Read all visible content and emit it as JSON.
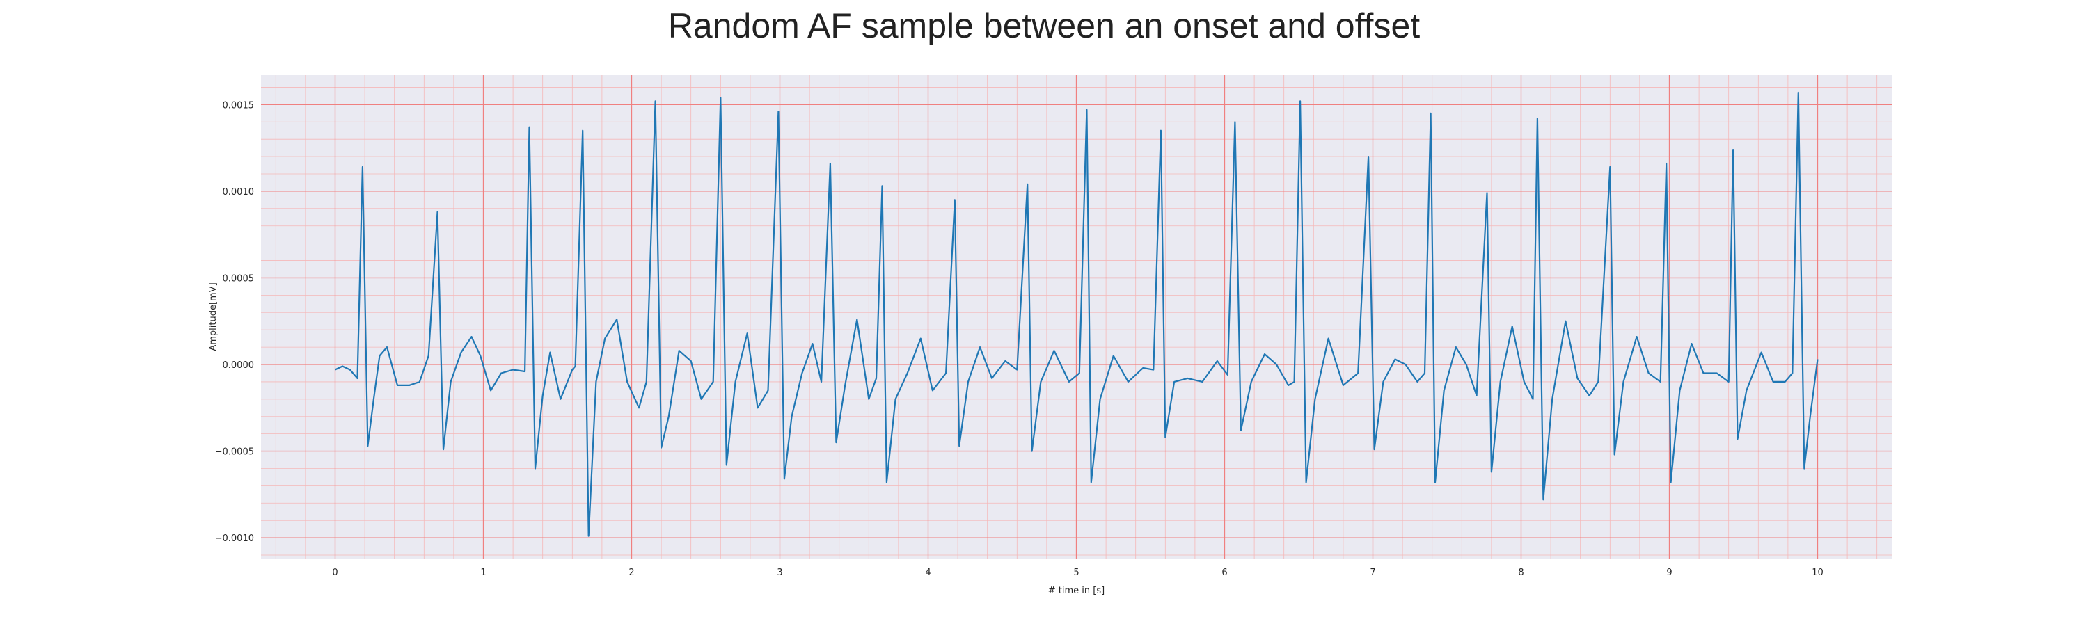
{
  "chart_data": {
    "type": "line",
    "title": "Random AF sample between an onset and offset",
    "xlabel": "# time in [s]",
    "ylabel": "Amplitude[mV]",
    "xlim": [
      -0.5,
      10.5
    ],
    "ylim": [
      -0.00112,
      0.00167
    ],
    "x_ticks": [
      0,
      1,
      2,
      3,
      4,
      5,
      6,
      7,
      8,
      9,
      10
    ],
    "y_ticks": [
      -0.001,
      -0.0005,
      0.0,
      0.0005,
      0.001,
      0.0015
    ],
    "x_tick_labels": [
      "0",
      "1",
      "2",
      "3",
      "4",
      "5",
      "6",
      "7",
      "8",
      "9",
      "10"
    ],
    "y_tick_labels": [
      "−0.0010",
      "−0.0005",
      "0.0000",
      "0.0005",
      "0.0010",
      "0.0015"
    ],
    "grid": true,
    "minor_grid": true,
    "series": [
      {
        "color": "#1f77b4",
        "points": [
          [
            0.0,
            -3e-05
          ],
          [
            0.05,
            -1e-05
          ],
          [
            0.1,
            -3e-05
          ],
          [
            0.15,
            -8e-05
          ],
          [
            0.185,
            0.00114
          ],
          [
            0.22,
            -0.00047
          ],
          [
            0.26,
            -0.0002
          ],
          [
            0.3,
            5e-05
          ],
          [
            0.35,
            0.0001
          ],
          [
            0.42,
            -0.00012
          ],
          [
            0.5,
            -0.00012
          ],
          [
            0.57,
            -0.0001
          ],
          [
            0.63,
            5e-05
          ],
          [
            0.69,
            0.00088
          ],
          [
            0.73,
            -0.00049
          ],
          [
            0.78,
            -0.0001
          ],
          [
            0.85,
            7e-05
          ],
          [
            0.92,
            0.00016
          ],
          [
            0.98,
            5e-05
          ],
          [
            1.05,
            -0.00015
          ],
          [
            1.12,
            -5e-05
          ],
          [
            1.2,
            -3e-05
          ],
          [
            1.28,
            -4e-05
          ],
          [
            1.31,
            0.00137
          ],
          [
            1.35,
            -0.0006
          ],
          [
            1.4,
            -0.00018
          ],
          [
            1.45,
            7e-05
          ],
          [
            1.52,
            -0.0002
          ],
          [
            1.6,
            -3e-05
          ],
          [
            1.62,
            -1e-05
          ],
          [
            1.67,
            0.00135
          ],
          [
            1.71,
            -0.00099
          ],
          [
            1.76,
            -0.0001
          ],
          [
            1.82,
            0.00015
          ],
          [
            1.9,
            0.00026
          ],
          [
            1.97,
            -0.0001
          ],
          [
            2.05,
            -0.00025
          ],
          [
            2.1,
            -0.0001
          ],
          [
            2.16,
            0.00152
          ],
          [
            2.2,
            -0.00048
          ],
          [
            2.25,
            -0.0003
          ],
          [
            2.32,
            8e-05
          ],
          [
            2.4,
            2e-05
          ],
          [
            2.47,
            -0.0002
          ],
          [
            2.55,
            -0.0001
          ],
          [
            2.6,
            0.00154
          ],
          [
            2.64,
            -0.00058
          ],
          [
            2.7,
            -0.0001
          ],
          [
            2.78,
            0.00018
          ],
          [
            2.85,
            -0.00025
          ],
          [
            2.92,
            -0.00015
          ],
          [
            2.99,
            0.00146
          ],
          [
            3.03,
            -0.00066
          ],
          [
            3.08,
            -0.0003
          ],
          [
            3.15,
            -5e-05
          ],
          [
            3.22,
            0.00012
          ],
          [
            3.28,
            -0.0001
          ],
          [
            3.34,
            0.00116
          ],
          [
            3.38,
            -0.00045
          ],
          [
            3.44,
            -0.00012
          ],
          [
            3.52,
            0.00026
          ],
          [
            3.6,
            -0.0002
          ],
          [
            3.65,
            -8e-05
          ],
          [
            3.69,
            0.00103
          ],
          [
            3.72,
            -0.00068
          ],
          [
            3.78,
            -0.0002
          ],
          [
            3.86,
            -5e-05
          ],
          [
            3.95,
            0.00015
          ],
          [
            4.03,
            -0.00015
          ],
          [
            4.12,
            -5e-05
          ],
          [
            4.18,
            0.00095
          ],
          [
            4.21,
            -0.00047
          ],
          [
            4.27,
            -0.0001
          ],
          [
            4.35,
            0.0001
          ],
          [
            4.43,
            -8e-05
          ],
          [
            4.52,
            2e-05
          ],
          [
            4.6,
            -3e-05
          ],
          [
            4.67,
            0.00104
          ],
          [
            4.7,
            -0.0005
          ],
          [
            4.76,
            -0.0001
          ],
          [
            4.85,
            8e-05
          ],
          [
            4.95,
            -0.0001
          ],
          [
            5.02,
            -5e-05
          ],
          [
            5.07,
            0.00147
          ],
          [
            5.1,
            -0.00068
          ],
          [
            5.16,
            -0.0002
          ],
          [
            5.25,
            5e-05
          ],
          [
            5.35,
            -0.0001
          ],
          [
            5.45,
            -2e-05
          ],
          [
            5.52,
            -3e-05
          ],
          [
            5.57,
            0.00135
          ],
          [
            5.6,
            -0.00042
          ],
          [
            5.66,
            -0.0001
          ],
          [
            5.75,
            -8e-05
          ],
          [
            5.85,
            -0.0001
          ],
          [
            5.95,
            2e-05
          ],
          [
            6.02,
            -6e-05
          ],
          [
            6.07,
            0.0014
          ],
          [
            6.11,
            -0.00038
          ],
          [
            6.18,
            -0.0001
          ],
          [
            6.27,
            6e-05
          ],
          [
            6.35,
            0.0
          ],
          [
            6.43,
            -0.00012
          ],
          [
            6.47,
            -0.0001
          ],
          [
            6.51,
            0.00152
          ],
          [
            6.55,
            -0.00068
          ],
          [
            6.61,
            -0.0002
          ],
          [
            6.7,
            0.00015
          ],
          [
            6.8,
            -0.00012
          ],
          [
            6.9,
            -5e-05
          ],
          [
            6.97,
            0.0012
          ],
          [
            7.01,
            -0.00049
          ],
          [
            7.07,
            -0.0001
          ],
          [
            7.15,
            3e-05
          ],
          [
            7.22,
            0.0
          ],
          [
            7.3,
            -0.0001
          ],
          [
            7.35,
            -5e-05
          ],
          [
            7.39,
            0.00145
          ],
          [
            7.42,
            -0.00068
          ],
          [
            7.48,
            -0.00015
          ],
          [
            7.56,
            0.0001
          ],
          [
            7.63,
            0.0
          ],
          [
            7.7,
            -0.00018
          ],
          [
            7.77,
            0.00099
          ],
          [
            7.8,
            -0.00062
          ],
          [
            7.86,
            -0.0001
          ],
          [
            7.94,
            0.00022
          ],
          [
            8.02,
            -0.0001
          ],
          [
            8.08,
            -0.0002
          ],
          [
            8.11,
            0.00142
          ],
          [
            8.15,
            -0.00078
          ],
          [
            8.21,
            -0.0002
          ],
          [
            8.3,
            0.00025
          ],
          [
            8.38,
            -8e-05
          ],
          [
            8.46,
            -0.00018
          ],
          [
            8.52,
            -0.0001
          ],
          [
            8.6,
            0.00114
          ],
          [
            8.63,
            -0.00052
          ],
          [
            8.69,
            -0.0001
          ],
          [
            8.78,
            0.00016
          ],
          [
            8.86,
            -5e-05
          ],
          [
            8.94,
            -0.0001
          ],
          [
            8.98,
            0.00116
          ],
          [
            9.01,
            -0.00068
          ],
          [
            9.07,
            -0.00015
          ],
          [
            9.15,
            0.00012
          ],
          [
            9.23,
            -5e-05
          ],
          [
            9.32,
            -5e-05
          ],
          [
            9.4,
            -0.0001
          ],
          [
            9.43,
            0.00124
          ],
          [
            9.46,
            -0.00043
          ],
          [
            9.52,
            -0.00015
          ],
          [
            9.62,
            7e-05
          ],
          [
            9.7,
            -0.0001
          ],
          [
            9.78,
            -0.0001
          ],
          [
            9.83,
            -5e-05
          ],
          [
            9.87,
            0.00157
          ],
          [
            9.91,
            -0.0006
          ],
          [
            9.95,
            -0.0003
          ],
          [
            10.0,
            3e-05
          ]
        ]
      }
    ]
  },
  "colors": {
    "plot_background": "#eaeaf2",
    "grid_major": "#f08080",
    "grid_minor": "#f5b8b8",
    "line": "#1f77b4"
  }
}
